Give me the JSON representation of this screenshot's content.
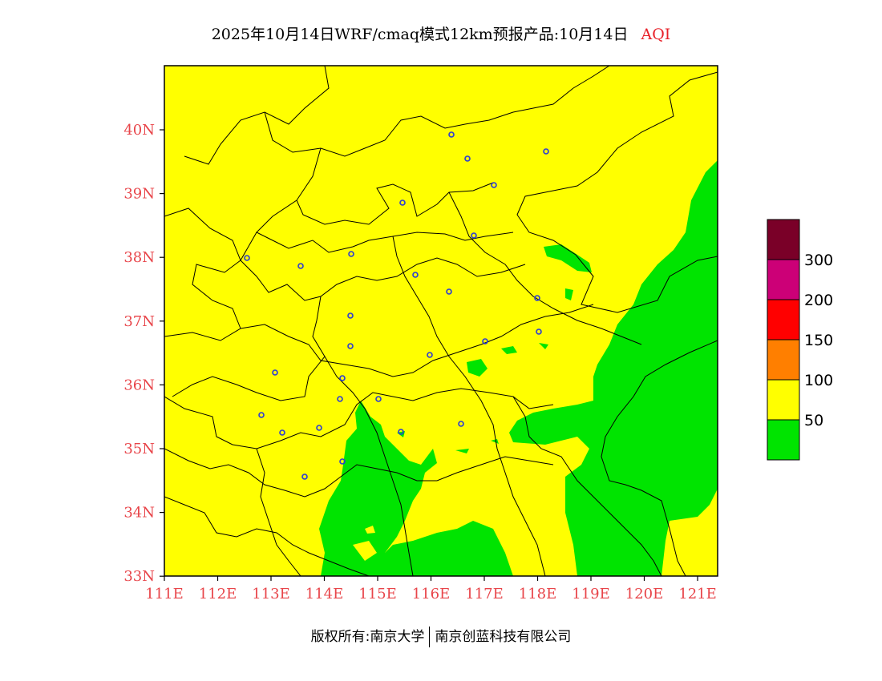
{
  "title": {
    "main": "2025年10月14日WRF/cmaq模式12km预报产品:10月14日",
    "variable": "AQI"
  },
  "axes": {
    "lat_labels": [
      "40N",
      "39N",
      "38N",
      "37N",
      "36N",
      "35N",
      "34N",
      "33N"
    ],
    "lon_labels": [
      "111E",
      "112E",
      "113E",
      "114E",
      "115E",
      "116E",
      "117E",
      "118E",
      "119E",
      "120E",
      "121E"
    ]
  },
  "legend": {
    "items": [
      {
        "label": "",
        "color": "#7a0028"
      },
      {
        "label": "300",
        "color": "#cc0077"
      },
      {
        "label": "200",
        "color": "#ff0000"
      },
      {
        "label": "150",
        "color": "#ff7f00"
      },
      {
        "label": "100",
        "color": "#ffff00"
      },
      {
        "label": "50",
        "color": "#00e400"
      }
    ]
  },
  "map": {
    "background_color": "#ffff00",
    "low_aqi_color": "#00e400",
    "boundary_color": "#000000",
    "city_marker_color": "#2a3bd6"
  },
  "footer": {
    "copyright": "版权所有:南京大学",
    "company": "南京创蓝科技有限公司"
  }
}
